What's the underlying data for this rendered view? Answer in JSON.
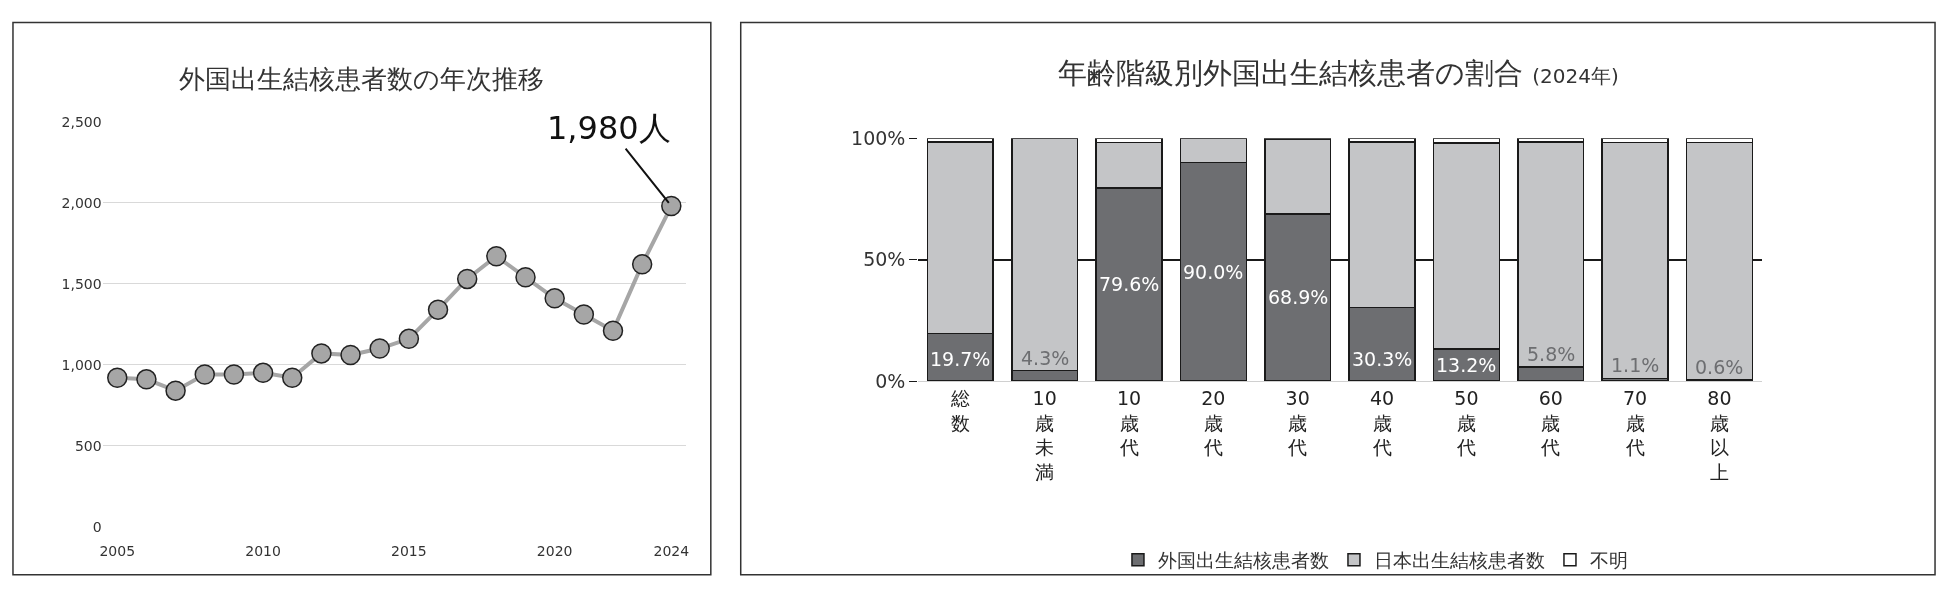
{
  "chart_data": [
    {
      "type": "line",
      "title": "外国出生結核患者数の年次推移",
      "x": [
        2005,
        2006,
        2007,
        2008,
        2009,
        2010,
        2011,
        2012,
        2013,
        2014,
        2015,
        2016,
        2017,
        2018,
        2019,
        2020,
        2021,
        2022,
        2023,
        2024
      ],
      "series": [
        {
          "color": "#a6a6a6",
          "values": [
            920,
            910,
            840,
            940,
            940,
            950,
            920,
            1070,
            1060,
            1100,
            1160,
            1340,
            1530,
            1670,
            1540,
            1410,
            1310,
            1210,
            1620,
            1980
          ]
        }
      ],
      "xlim": [
        2004.5,
        2024.5
      ],
      "xticks": [
        2005,
        2010,
        2015,
        2020,
        2024
      ],
      "ylim": [
        0,
        2500
      ],
      "yticks": [
        0,
        500,
        {
          "value": 1000,
          "label": "1,000"
        },
        {
          "value": 1500,
          "label": "1,500"
        },
        {
          "value": 2000,
          "label": "2,000"
        },
        {
          "value": 2500,
          "label": "2,500"
        }
      ],
      "grid": "y",
      "marker": "circle",
      "legend": false,
      "annotations": [
        {
          "text": "1,980人",
          "x": 2024,
          "y": 1980
        }
      ]
    },
    {
      "type": "bar",
      "stacked": true,
      "title": "年齢階級別外国出生結核患者の割合",
      "subtitle": "(2024年)",
      "categories": [
        "総数",
        "10歳未満",
        "10歳代",
        "20歳代",
        "30歳代",
        "40歳代",
        "50歳代",
        "60歳代",
        "70歳代",
        "80歳以上"
      ],
      "series": [
        {
          "name": "外国出生結核患者数",
          "color": "#6d6e71",
          "values": [
            19.7,
            4.3,
            79.6,
            90.0,
            68.9,
            30.3,
            13.2,
            5.8,
            1.1,
            0.6
          ],
          "value_labels": [
            "19.7%",
            "4.3%",
            "79.6%",
            "90.0%",
            "68.9%",
            "30.3%",
            "13.2%",
            "5.8%",
            "1.1%",
            "0.6%"
          ]
        },
        {
          "name": "日本出生結核患者数",
          "color": "#c4c5c7",
          "values": [
            78.8,
            95.7,
            18.7,
            10.0,
            30.6,
            68.2,
            84.8,
            92.7,
            97.2,
            97.7
          ]
        },
        {
          "name": "不明",
          "color": "#ffffff",
          "values": [
            1.5,
            null,
            1.7,
            null,
            0.5,
            1.5,
            2.0,
            1.5,
            1.7,
            1.7
          ]
        }
      ],
      "ylim": [
        0,
        100
      ],
      "yticks": [
        {
          "value": 0,
          "label": "0%"
        },
        {
          "value": 50,
          "label": "50%"
        },
        {
          "value": 100,
          "label": "100%"
        }
      ],
      "grid": "y",
      "legend": "bottom"
    }
  ]
}
